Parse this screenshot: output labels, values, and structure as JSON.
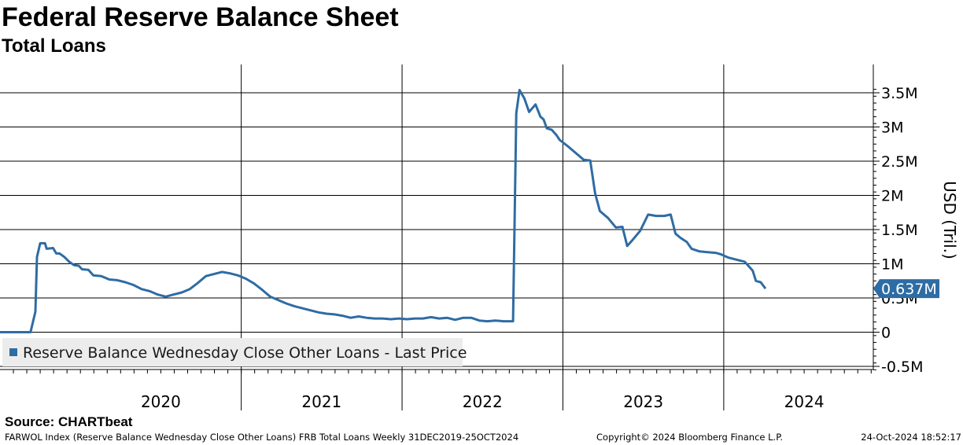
{
  "header": {
    "title": "Federal Reserve Balance Sheet",
    "subtitle": "Total Loans"
  },
  "source": "Source: CHARTbeat",
  "footer": {
    "left": "FARWOL Index (Reserve Balance Wednesday Close Other Loans) FRB Total Loans  Weekly 31DEC2019-25OCT2024",
    "middle": "Copyright© 2024 Bloomberg Finance L.P.",
    "right": "24-Oct-2024 18:52:17"
  },
  "chart_data": {
    "type": "line",
    "title": "Federal Reserve Balance Sheet",
    "subtitle": "Total Loans",
    "ylabel": "USD (Tril.)",
    "xlabel": "",
    "ylim": [
      -0.55,
      3.65
    ],
    "xlim": [
      2019.5,
      2024.93
    ],
    "x_tick_labels": [
      "2020",
      "2021",
      "2022",
      "2023",
      "2024"
    ],
    "y_ticks": [
      -0.5,
      0,
      0.5,
      1,
      1.5,
      2,
      2.5,
      3,
      3.5
    ],
    "y_tick_labels": [
      "-0.5M",
      "0",
      "0.5M",
      "1M",
      "1.5M",
      "2M",
      "2.5M",
      "3M",
      "3.5M"
    ],
    "grid": true,
    "legend_position": "bottom-left",
    "last_value_label": "0.637M",
    "series": [
      {
        "name": "Reserve Balance Wednesday Close Other Loans - Last Price",
        "color": "#2e6ca4",
        "points": [
          [
            2019.5,
            0.0
          ],
          [
            2019.69,
            0.0
          ],
          [
            2019.72,
            0.3
          ],
          [
            2019.73,
            1.1
          ],
          [
            2019.75,
            1.3
          ],
          [
            2019.78,
            1.3
          ],
          [
            2019.79,
            1.22
          ],
          [
            2019.83,
            1.23
          ],
          [
            2019.85,
            1.15
          ],
          [
            2019.87,
            1.15
          ],
          [
            2019.9,
            1.1
          ],
          [
            2019.93,
            1.03
          ],
          [
            2019.96,
            0.98
          ],
          [
            2019.99,
            0.97
          ],
          [
            2020.01,
            0.92
          ],
          [
            2020.05,
            0.91
          ],
          [
            2020.08,
            0.83
          ],
          [
            2020.13,
            0.82
          ],
          [
            2020.18,
            0.77
          ],
          [
            2020.23,
            0.76
          ],
          [
            2020.28,
            0.73
          ],
          [
            2020.33,
            0.69
          ],
          [
            2020.38,
            0.63
          ],
          [
            2020.43,
            0.6
          ],
          [
            2020.48,
            0.55
          ],
          [
            2020.53,
            0.52
          ],
          [
            2020.58,
            0.55
          ],
          [
            2020.63,
            0.58
          ],
          [
            2020.68,
            0.63
          ],
          [
            2020.73,
            0.72
          ],
          [
            2020.78,
            0.82
          ],
          [
            2020.83,
            0.85
          ],
          [
            2020.88,
            0.88
          ],
          [
            2020.93,
            0.86
          ],
          [
            2020.98,
            0.83
          ],
          [
            2021.03,
            0.78
          ],
          [
            2021.08,
            0.71
          ],
          [
            2021.13,
            0.62
          ],
          [
            2021.18,
            0.52
          ],
          [
            2021.23,
            0.47
          ],
          [
            2021.28,
            0.42
          ],
          [
            2021.33,
            0.38
          ],
          [
            2021.38,
            0.35
          ],
          [
            2021.43,
            0.32
          ],
          [
            2021.48,
            0.29
          ],
          [
            2021.53,
            0.27
          ],
          [
            2021.58,
            0.26
          ],
          [
            2021.63,
            0.24
          ],
          [
            2021.68,
            0.21
          ],
          [
            2021.73,
            0.23
          ],
          [
            2021.78,
            0.21
          ],
          [
            2021.83,
            0.2
          ],
          [
            2021.88,
            0.2
          ],
          [
            2021.93,
            0.19
          ],
          [
            2021.98,
            0.2
          ],
          [
            2022.03,
            0.19
          ],
          [
            2022.08,
            0.2
          ],
          [
            2022.13,
            0.2
          ],
          [
            2022.18,
            0.22
          ],
          [
            2022.23,
            0.2
          ],
          [
            2022.28,
            0.21
          ],
          [
            2022.33,
            0.18
          ],
          [
            2022.38,
            0.21
          ],
          [
            2022.43,
            0.21
          ],
          [
            2022.48,
            0.17
          ],
          [
            2022.53,
            0.16
          ],
          [
            2022.58,
            0.17
          ],
          [
            2022.63,
            0.16
          ],
          [
            2022.68,
            0.16
          ],
          [
            2022.69,
            0.16
          ],
          [
            2022.71,
            3.2
          ],
          [
            2022.73,
            3.54
          ],
          [
            2022.76,
            3.42
          ],
          [
            2022.79,
            3.22
          ],
          [
            2022.83,
            3.33
          ],
          [
            2022.86,
            3.15
          ],
          [
            2022.88,
            3.11
          ],
          [
            2022.9,
            2.98
          ],
          [
            2022.93,
            2.96
          ],
          [
            2022.96,
            2.88
          ],
          [
            2022.98,
            2.81
          ],
          [
            2023.03,
            2.72
          ],
          [
            2023.08,
            2.62
          ],
          [
            2023.13,
            2.52
          ],
          [
            2023.17,
            2.51
          ],
          [
            2023.2,
            2.03
          ],
          [
            2023.23,
            1.77
          ],
          [
            2023.28,
            1.67
          ],
          [
            2023.33,
            1.53
          ],
          [
            2023.37,
            1.54
          ],
          [
            2023.4,
            1.26
          ],
          [
            2023.43,
            1.34
          ],
          [
            2023.48,
            1.48
          ],
          [
            2023.53,
            1.72
          ],
          [
            2023.58,
            1.7
          ],
          [
            2023.63,
            1.7
          ],
          [
            2023.67,
            1.72
          ],
          [
            2023.7,
            1.44
          ],
          [
            2023.73,
            1.38
          ],
          [
            2023.77,
            1.32
          ],
          [
            2023.8,
            1.22
          ],
          [
            2023.85,
            1.18
          ],
          [
            2023.9,
            1.17
          ],
          [
            2023.95,
            1.16
          ],
          [
            2023.98,
            1.14
          ],
          [
            2024.03,
            1.09
          ],
          [
            2024.08,
            1.06
          ],
          [
            2024.13,
            1.03
          ],
          [
            2024.18,
            0.9
          ],
          [
            2024.2,
            0.75
          ],
          [
            2024.23,
            0.73
          ],
          [
            2024.26,
            0.637
          ]
        ]
      }
    ]
  }
}
